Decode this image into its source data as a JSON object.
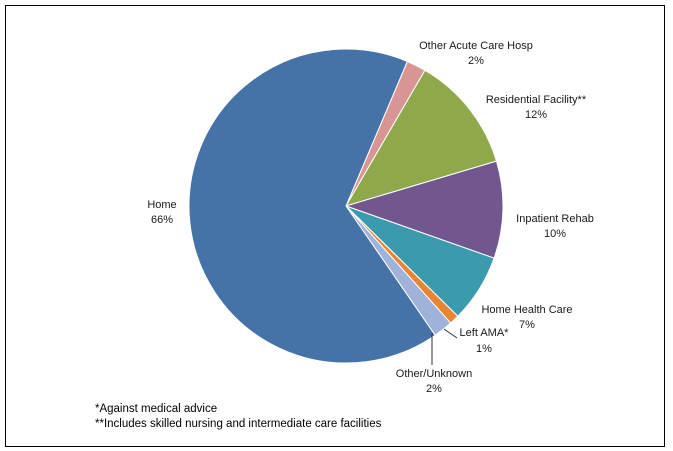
{
  "chart_data": {
    "type": "pie",
    "title": "",
    "slices": [
      {
        "label": "Other Acute Care Hosp",
        "value": 2,
        "value_text": "2%",
        "color": "#d99594"
      },
      {
        "label": "Residential Facility**",
        "value": 12,
        "value_text": "12%",
        "color": "#8ea84b"
      },
      {
        "label": "Inpatient Rehab",
        "value": 10,
        "value_text": "10%",
        "color": "#725690"
      },
      {
        "label": "Home Health Care",
        "value": 7,
        "value_text": "7%",
        "color": "#3a9aae"
      },
      {
        "label": "Left AMA*",
        "value": 1,
        "value_text": "1%",
        "color": "#e98432"
      },
      {
        "label": "Other/Unknown",
        "value": 2,
        "value_text": "2%",
        "color": "#9fb2d9"
      },
      {
        "label": "Home",
        "value": 66,
        "value_text": "66%",
        "color": "#4572a7"
      }
    ],
    "footnotes": [
      "*Against medical advice",
      "**Includes skilled nursing and intermediate care facilities"
    ]
  }
}
